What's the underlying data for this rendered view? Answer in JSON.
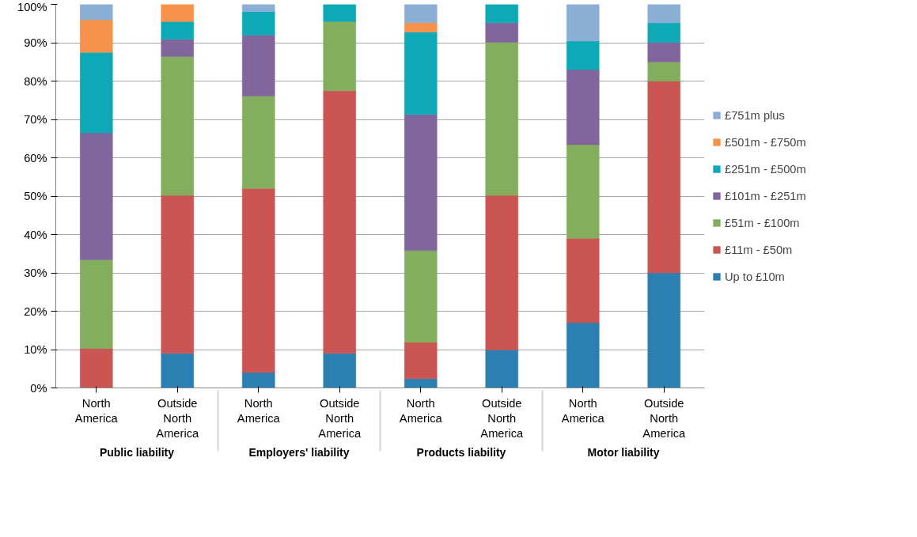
{
  "chart_data": {
    "type": "bar",
    "stacked": true,
    "categories": [
      "North America",
      "Outside North America",
      "North America",
      "Outside North America",
      "North America",
      "Outside North America",
      "North America",
      "Outside North America"
    ],
    "annotations": [
      "Public liability",
      "Employers' liability",
      "Products liability",
      "Motor liability"
    ],
    "ylim": [
      0,
      100
    ],
    "yticks": [
      {
        "value": 0,
        "label": "0%"
      },
      {
        "value": 10,
        "label": "10%"
      },
      {
        "value": 20,
        "label": "20%"
      },
      {
        "value": 30,
        "label": "30%"
      },
      {
        "value": 40,
        "label": "40%"
      },
      {
        "value": 50,
        "label": "50%"
      },
      {
        "value": 60,
        "label": "60%"
      },
      {
        "value": 70,
        "label": "70%"
      },
      {
        "value": 80,
        "label": "80%"
      },
      {
        "value": 90,
        "label": "90%"
      },
      {
        "value": 100,
        "label": "100%"
      }
    ],
    "grid": "y",
    "legend": "right",
    "series": [
      {
        "name": "Up to £10m",
        "color": "#2c7fb2",
        "values": [
          null,
          9.0,
          4.0,
          9.0,
          2.4,
          9.9,
          17.0,
          30.0
        ]
      },
      {
        "name": "£11m - £50m",
        "color": "#cb5553",
        "values": [
          10.3,
          41.2,
          48.0,
          68.5,
          9.5,
          40.3,
          22.0,
          50.0
        ]
      },
      {
        "name": "£51m - £100m",
        "color": "#82ae5e",
        "values": [
          23.1,
          36.2,
          24.1,
          18.0,
          23.9,
          39.9,
          24.4,
          5.0
        ]
      },
      {
        "name": "£101m - £251m",
        "color": "#80669c",
        "values": [
          33.1,
          4.5,
          15.9,
          null,
          35.5,
          5.1,
          19.6,
          5.1
        ]
      },
      {
        "name": "£251m - £500m",
        "color": "#0ea9b7",
        "values": [
          21.0,
          4.6,
          6.1,
          4.5,
          21.5,
          4.8,
          7.4,
          5.1
        ]
      },
      {
        "name": "£501m - £750m",
        "color": "#f7924a",
        "values": [
          8.5,
          4.5,
          null,
          null,
          2.4,
          null,
          null,
          null
        ]
      },
      {
        "name": "£751m plus",
        "color": "#8aaed4",
        "values": [
          4.0,
          null,
          1.9,
          null,
          4.8,
          null,
          9.6,
          4.8
        ]
      }
    ]
  }
}
